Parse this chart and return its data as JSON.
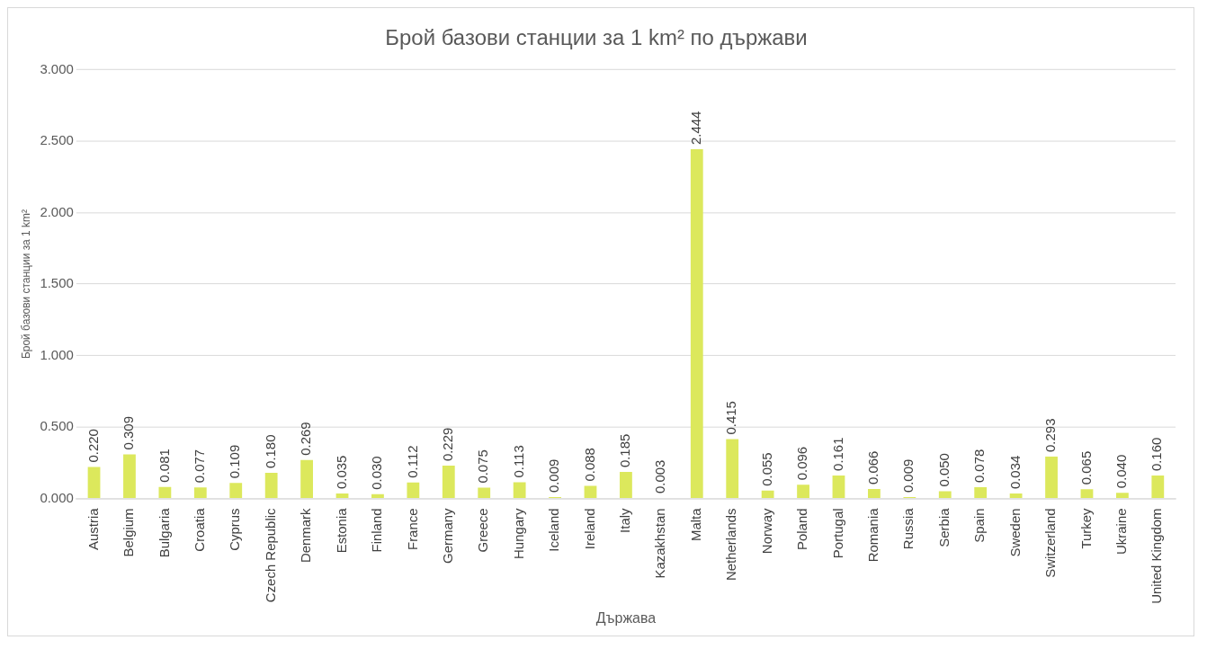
{
  "chart_data": {
    "type": "bar",
    "title": "Брой базови станции за 1 km² по държави",
    "xlabel": "Държава",
    "ylabel": "Брой базови станции за 1 km²",
    "categories": [
      "Austria",
      "Belgium",
      "Bulgaria",
      "Croatia",
      "Cyprus",
      "Czech Republic",
      "Denmark",
      "Estonia",
      "Finland",
      "France",
      "Germany",
      "Greece",
      "Hungary",
      "Iceland",
      "Ireland",
      "Italy",
      "Kazakhstan",
      "Malta",
      "Netherlands",
      "Norway",
      "Poland",
      "Portugal",
      "Romania",
      "Russia",
      "Serbia",
      "Spain",
      "Sweden",
      "Switzerland",
      "Turkey",
      "Ukraine",
      "United Kingdom"
    ],
    "values": [
      0.22,
      0.309,
      0.081,
      0.077,
      0.109,
      0.18,
      0.269,
      0.035,
      0.03,
      0.112,
      0.229,
      0.075,
      0.113,
      0.009,
      0.088,
      0.185,
      0.003,
      2.444,
      0.415,
      0.055,
      0.096,
      0.161,
      0.066,
      0.009,
      0.05,
      0.078,
      0.034,
      0.293,
      0.065,
      0.04,
      0.16
    ],
    "value_labels": [
      "0.220",
      "0.309",
      "0.081",
      "0.077",
      "0.109",
      "0.180",
      "0.269",
      "0.035",
      "0.030",
      "0.112",
      "0.229",
      "0.075",
      "0.113",
      "0.009",
      "0.088",
      "0.185",
      "0.003",
      "2.444",
      "0.415",
      "0.055",
      "0.096",
      "0.161",
      "0.066",
      "0.009",
      "0.050",
      "0.078",
      "0.034",
      "0.293",
      "0.065",
      "0.040",
      "0.160"
    ],
    "color": "#dce85c",
    "ylim": [
      0,
      3
    ],
    "yticks": [
      {
        "value": 0,
        "label": "0.000"
      },
      {
        "value": 0.5,
        "label": "0.500"
      },
      {
        "value": 1,
        "label": "1.000"
      },
      {
        "value": 1.5,
        "label": "1.500"
      },
      {
        "value": 2,
        "label": "2.000"
      },
      {
        "value": 2.5,
        "label": "2.500"
      },
      {
        "value": 3,
        "label": "3.000"
      }
    ],
    "grid": "y",
    "legend": false
  }
}
